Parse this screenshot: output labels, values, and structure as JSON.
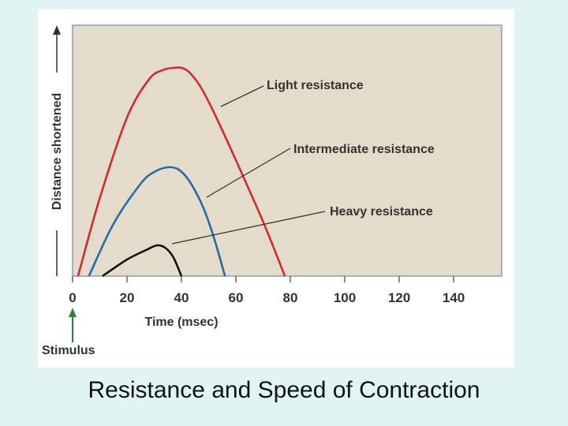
{
  "caption": "Resistance and Speed of Contraction",
  "chart_data": {
    "type": "line",
    "xlabel": "Time (msec)",
    "ylabel": "Distance shortened",
    "xlim": [
      0,
      160
    ],
    "ylim": [
      0,
      1
    ],
    "x_ticks": [
      "0",
      "20",
      "40",
      "60",
      "80",
      "100",
      "120",
      "140"
    ],
    "grid": false,
    "stimulus_label": "Stimulus",
    "plot_background": "#e3dccb",
    "series": [
      {
        "name": "Light resistance",
        "color": "#d42a2a",
        "x": [
          2,
          10,
          20,
          28,
          33,
          37,
          40,
          43,
          47,
          52,
          60,
          70,
          78
        ],
        "y": [
          0,
          0.33,
          0.67,
          0.83,
          0.87,
          0.88,
          0.88,
          0.86,
          0.8,
          0.69,
          0.49,
          0.23,
          0
        ]
      },
      {
        "name": "Intermediate resistance",
        "color": "#2a68a8",
        "x": [
          6,
          15,
          25,
          30,
          35,
          39,
          43,
          48,
          52,
          56
        ],
        "y": [
          0,
          0.22,
          0.39,
          0.44,
          0.46,
          0.45,
          0.4,
          0.29,
          0.16,
          0
        ]
      },
      {
        "name": "Heavy resistance",
        "color": "#111111",
        "x": [
          11,
          20,
          27,
          31,
          34,
          37,
          40
        ],
        "y": [
          0,
          0.07,
          0.11,
          0.13,
          0.12,
          0.08,
          0
        ]
      }
    ]
  }
}
